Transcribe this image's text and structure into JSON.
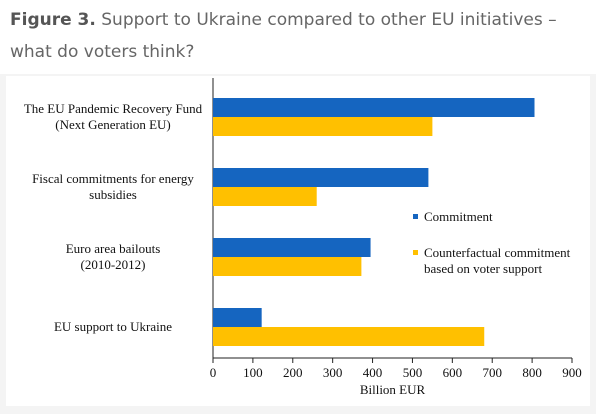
{
  "caption": {
    "figure_label": "Figure 3.",
    "text": " Support to Ukraine compared to other EU initiatives – what do voters think?"
  },
  "chart_data": {
    "type": "bar",
    "orientation": "horizontal",
    "categories": [
      [
        "The EU Pandemic Recovery Fund",
        "(Next Generation EU)"
      ],
      [
        "Fiscal commitments for energy",
        "subsidies"
      ],
      [
        "Euro area bailouts",
        "(2010-2012)"
      ],
      [
        "EU support to Ukraine"
      ]
    ],
    "series": [
      {
        "name": "Commitment",
        "color": "#1565c0",
        "values": [
          806,
          540,
          395,
          122
        ]
      },
      {
        "name": "Counterfactual commitment based on voter support",
        "color": "#ffc000",
        "values": [
          550,
          260,
          372,
          680
        ]
      }
    ],
    "legend_labels": [
      [
        "Commitment"
      ],
      [
        "Counterfactual commitment",
        "based on voter support"
      ]
    ],
    "xlabel": "Billion EUR",
    "xlim": [
      0,
      900
    ],
    "xticks": [
      "0",
      "100",
      "200",
      "300",
      "400",
      "500",
      "600",
      "700",
      "800",
      "900"
    ],
    "legend_position": "right",
    "grid": false
  }
}
